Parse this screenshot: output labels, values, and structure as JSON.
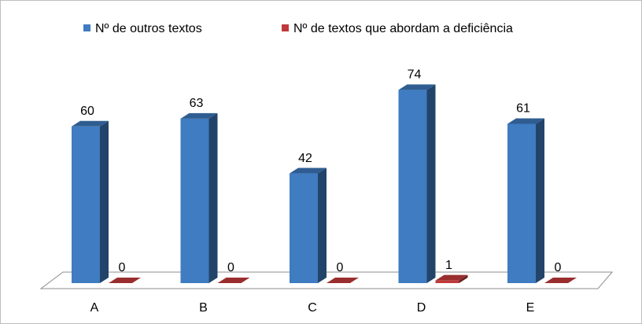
{
  "chart_data": {
    "type": "bar3d",
    "categories": [
      "A",
      "B",
      "C",
      "D",
      "E"
    ],
    "series": [
      {
        "name": "Nº  de outros textos",
        "color": "#3f7cc1",
        "values": [
          60,
          63,
          42,
          74,
          61
        ]
      },
      {
        "name": "Nº de textos que abordam a deficiência",
        "color": "#c0393a",
        "values": [
          0,
          0,
          0,
          1,
          0
        ]
      }
    ],
    "legend": "top"
  }
}
